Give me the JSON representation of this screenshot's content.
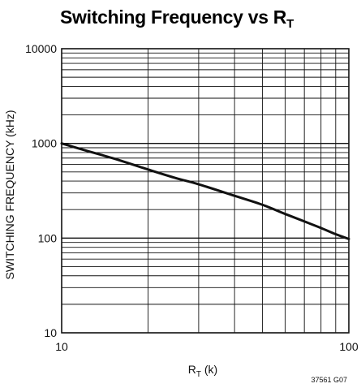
{
  "chart_data": {
    "type": "line",
    "title": {
      "main": "Switching Frequency vs R",
      "sub": "T"
    },
    "xlabel": {
      "main": "R",
      "sub": "T",
      "suffix": " (k)"
    },
    "ylabel": "SWITCHING FREQUENCY (kHz)",
    "xscale": "log",
    "yscale": "log",
    "xlim": [
      10,
      100
    ],
    "ylim": [
      10,
      10000
    ],
    "x_tick_labels": [
      "10",
      "100"
    ],
    "y_tick_labels": [
      "10",
      "100",
      "1000",
      "10000"
    ],
    "grid": true,
    "series": [
      {
        "x": [
          10,
          12,
          15,
          20,
          25,
          30,
          40,
          50,
          60,
          70,
          80,
          90,
          100
        ],
        "values": [
          1000,
          850,
          700,
          530,
          430,
          370,
          280,
          225,
          180,
          150,
          128,
          110,
          98
        ]
      }
    ]
  },
  "figure_id": "37561 G07",
  "colors": {
    "line": "#111111",
    "grid": "#111111",
    "background": "#ffffff"
  }
}
